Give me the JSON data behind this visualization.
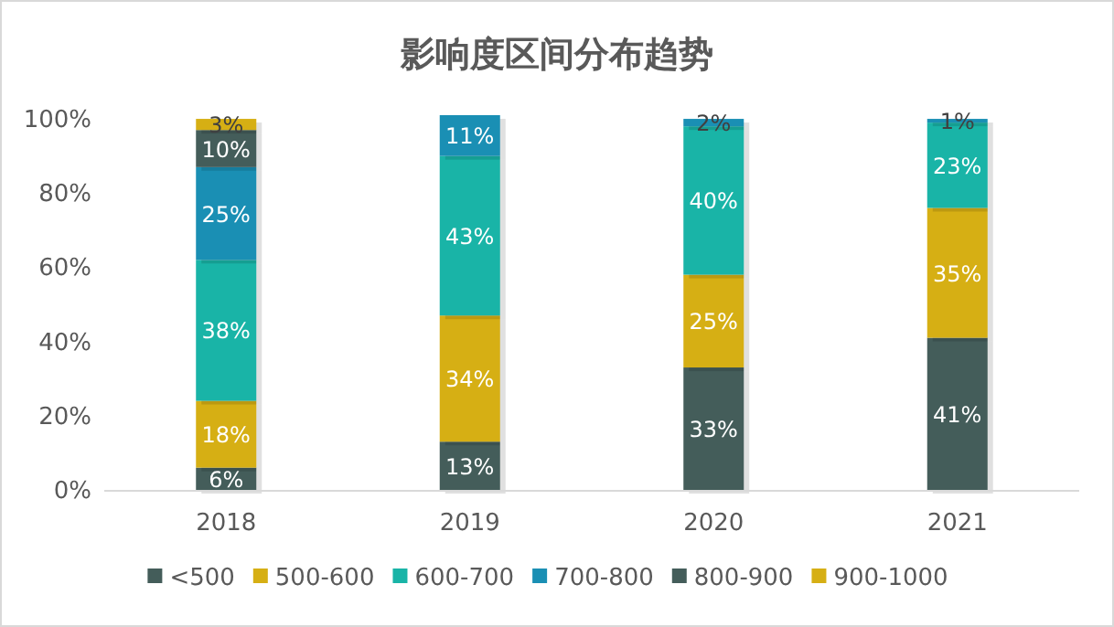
{
  "chart_data": {
    "type": "bar",
    "title": "影响度区间分布趋势",
    "stacked": true,
    "legend": "bottom",
    "grid": false,
    "categories": [
      "2018",
      "2019",
      "2020",
      "2021"
    ],
    "ylim": [
      0,
      101
    ],
    "yticks": [
      {
        "value": 0,
        "label": "0%"
      },
      {
        "value": 20,
        "label": "20%"
      },
      {
        "value": 40,
        "label": "40%"
      },
      {
        "value": 60,
        "label": "60%"
      },
      {
        "value": 80,
        "label": "80%"
      },
      {
        "value": 100,
        "label": "100%"
      }
    ],
    "series": [
      {
        "name": "<500",
        "color": "#445d5a",
        "values": [
          6,
          13,
          33,
          41
        ],
        "value_labels": [
          "6%",
          "13%",
          "33%",
          "41%"
        ]
      },
      {
        "name": "500-600",
        "color": "#d6af14",
        "values": [
          18,
          34,
          25,
          35
        ],
        "value_labels": [
          "18%",
          "34%",
          "25%",
          "35%"
        ]
      },
      {
        "name": "600-700",
        "color": "#19b4a7",
        "values": [
          38,
          43,
          40,
          23
        ],
        "value_labels": [
          "38%",
          "43%",
          "40%",
          "23%"
        ]
      },
      {
        "name": "700-800",
        "color": "#1a8fb4",
        "values": [
          25,
          11,
          2,
          1
        ],
        "value_labels": [
          "25%",
          "11%",
          "2%",
          "1%"
        ]
      },
      {
        "name": "800-900",
        "color": "#445d5a",
        "values": [
          10,
          null,
          null,
          null
        ],
        "value_labels": [
          "10%",
          null,
          null,
          null
        ]
      },
      {
        "name": "900-1000",
        "color": "#d6af14",
        "values": [
          3,
          null,
          null,
          null
        ],
        "value_labels": [
          "3%",
          null,
          null,
          null
        ]
      }
    ]
  }
}
